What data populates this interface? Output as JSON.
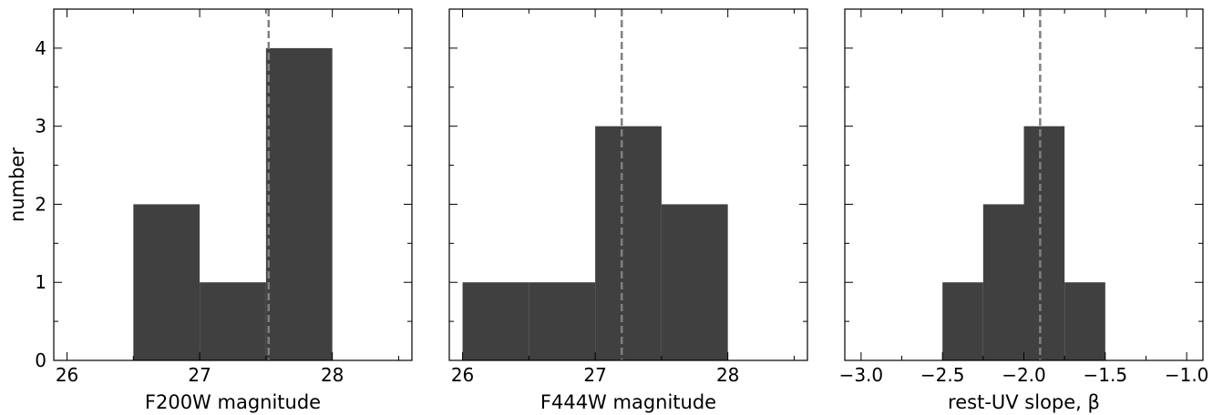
{
  "chart_data": [
    {
      "type": "bar",
      "xlabel": "F200W magnitude",
      "ylabel": "number",
      "xlim": [
        25.9,
        28.6
      ],
      "ylim": [
        0,
        4.5
      ],
      "bin_edges": [
        26.5,
        27.0,
        27.5,
        28.0
      ],
      "values": [
        2,
        1,
        4
      ],
      "vline": 27.52,
      "xticks": [
        26,
        27,
        28
      ],
      "xtick_labels": [
        "26",
        "27",
        "28"
      ],
      "yticks": [
        0,
        1,
        2,
        3,
        4
      ],
      "ytick_labels": [
        "0",
        "1",
        "2",
        "3",
        "4"
      ],
      "bar_color": "#404040",
      "vline_color": "#808080"
    },
    {
      "type": "bar",
      "xlabel": "F444W magnitude",
      "ylabel": "",
      "xlim": [
        25.9,
        28.6
      ],
      "ylim": [
        0,
        4.5
      ],
      "bin_edges": [
        26.0,
        26.5,
        27.0,
        27.5,
        28.0
      ],
      "values": [
        1,
        1,
        3,
        2
      ],
      "vline": 27.2,
      "xticks": [
        26,
        27,
        28
      ],
      "xtick_labels": [
        "26",
        "27",
        "28"
      ],
      "yticks": [
        0,
        1,
        2,
        3,
        4
      ],
      "ytick_labels": [],
      "bar_color": "#404040",
      "vline_color": "#808080"
    },
    {
      "type": "bar",
      "xlabel": "rest-UV slope, β",
      "ylabel": "",
      "xlim": [
        -3.1,
        -0.9
      ],
      "ylim": [
        0,
        4.5
      ],
      "bin_edges": [
        -2.5,
        -2.25,
        -2.0,
        -1.75,
        -1.5
      ],
      "values": [
        1,
        2,
        3,
        1
      ],
      "vline": -1.9,
      "xticks": [
        -3.0,
        -2.5,
        -2.0,
        -1.5,
        -1.0
      ],
      "xtick_labels": [
        "−3.0",
        "−2.5",
        "−2.0",
        "−1.5",
        "−1.0"
      ],
      "yticks": [
        0,
        1,
        2,
        3,
        4
      ],
      "ytick_labels": [],
      "bar_color": "#404040",
      "vline_color": "#808080"
    }
  ]
}
